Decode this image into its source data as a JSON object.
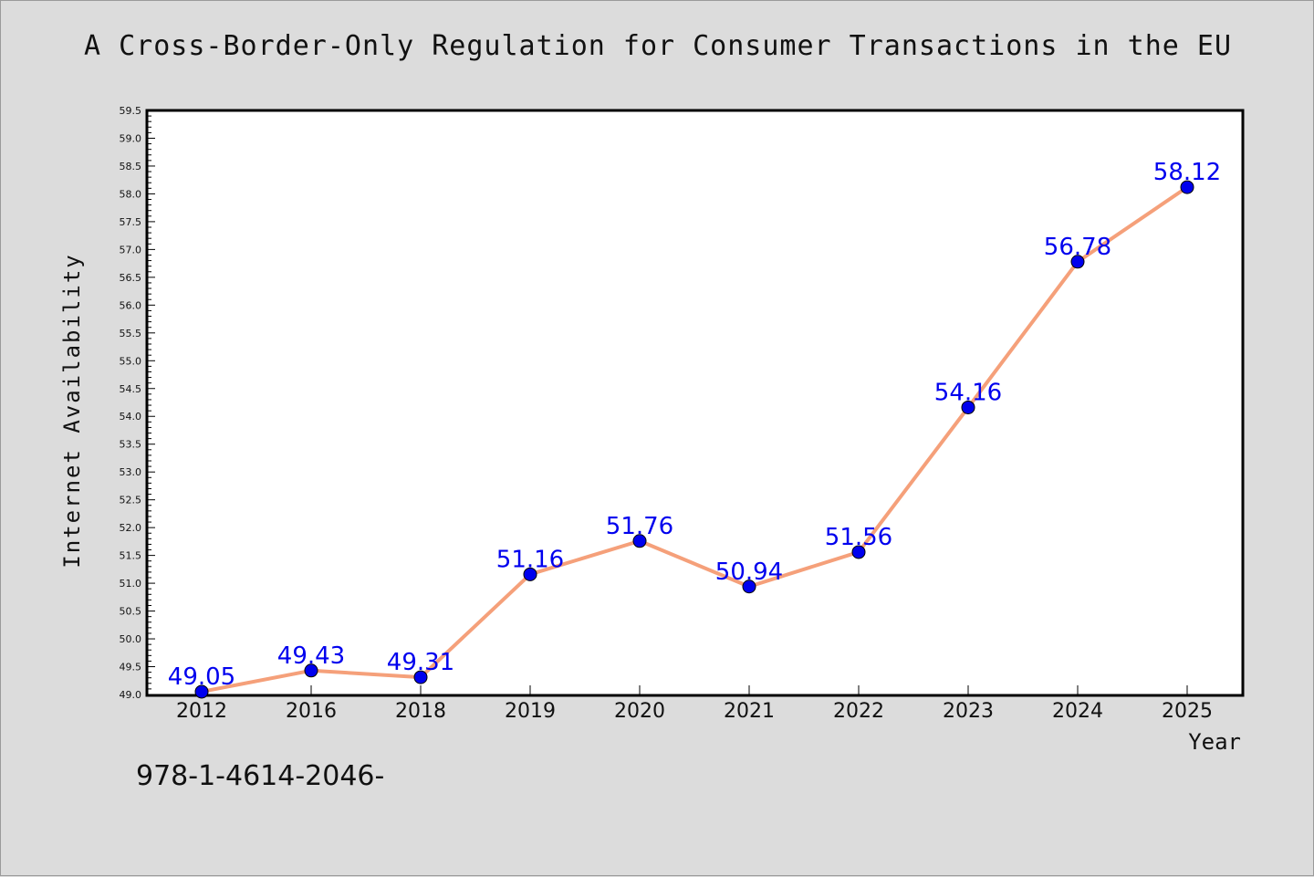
{
  "chart_data": {
    "type": "line",
    "title": "A Cross-Border-Only Regulation for Consumer Transactions in the EU",
    "xlabel": "Year",
    "ylabel": "Internet Availability",
    "categories": [
      "2012",
      "2016",
      "2018",
      "2019",
      "2020",
      "2021",
      "2022",
      "2023",
      "2024",
      "2025"
    ],
    "series": [
      {
        "values": [
          49.05,
          49.43,
          49.31,
          51.16,
          51.76,
          50.94,
          51.56,
          54.16,
          56.78,
          58.12
        ],
        "data_labels": [
          "49.05",
          "49.43",
          "49.31",
          "51.16",
          "51.76",
          "50.94",
          "51.56",
          "54.16",
          "56.78",
          "58.12"
        ],
        "line_color": "#f5a07a",
        "marker_color": "#0000ee"
      }
    ],
    "ylim": [
      49.0,
      59.5
    ],
    "y_ticks": [
      "49.0",
      "49.5",
      "50.0",
      "50.5",
      "51.0",
      "51.5",
      "52.0",
      "52.5",
      "53.0",
      "53.5",
      "54.0",
      "54.5",
      "55.0",
      "55.5",
      "56.0",
      "56.5",
      "57.0",
      "57.5",
      "58.0",
      "58.5",
      "59.0",
      "59.5"
    ],
    "grid": false,
    "legend": "none",
    "label_color": "#0000ee"
  },
  "footer": {
    "code": "978-1-4614-2046-"
  }
}
